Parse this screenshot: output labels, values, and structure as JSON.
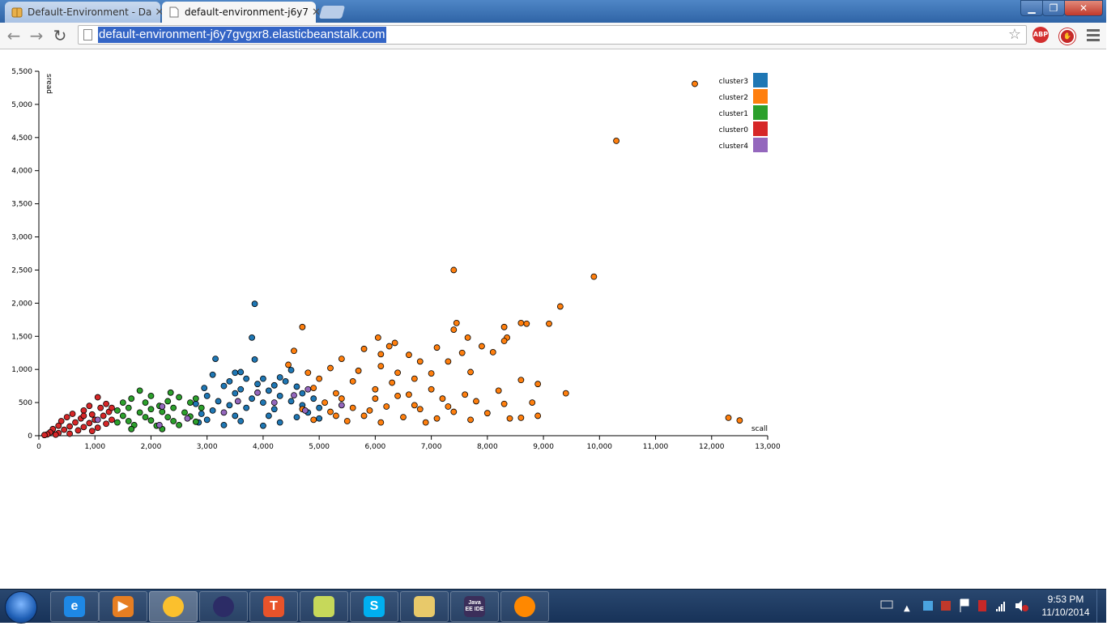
{
  "browser": {
    "tabs": [
      {
        "title": "Default-Environment - Da",
        "active": false,
        "icon": "package-icon"
      },
      {
        "title": "default-environment-j6y7",
        "active": true,
        "icon": "page-icon"
      }
    ],
    "url": "default-environment-j6y7gvgxr8.elasticbeanstalk.com",
    "extensions": [
      "ABP",
      "stop-extension-icon"
    ],
    "window_controls": [
      "minimize",
      "maximize",
      "close"
    ]
  },
  "chart_data": {
    "type": "scatter",
    "title": "",
    "xlabel": "scall",
    "ylabel": "sread",
    "xlim": [
      0,
      13000
    ],
    "ylim": [
      0,
      5500
    ],
    "x_ticks": [
      "0",
      "1,000",
      "2,000",
      "3,000",
      "4,000",
      "5,000",
      "6,000",
      "7,000",
      "8,000",
      "9,000",
      "10,000",
      "11,000",
      "12,000",
      "13,000"
    ],
    "y_ticks": [
      "0",
      "500",
      "1,000",
      "1,500",
      "2,000",
      "2,500",
      "3,000",
      "3,500",
      "4,000",
      "4,500",
      "5,000",
      "5,500"
    ],
    "legend_position": "top-right",
    "series": [
      {
        "name": "cluster3",
        "color": "#1f77b4",
        "points": [
          [
            3150,
            1160
          ],
          [
            3800,
            1480
          ],
          [
            3850,
            1150
          ],
          [
            3850,
            1990
          ],
          [
            3100,
            920
          ],
          [
            3500,
            950
          ],
          [
            3600,
            960
          ],
          [
            4500,
            990
          ],
          [
            3700,
            860
          ],
          [
            4300,
            880
          ],
          [
            4000,
            860
          ],
          [
            3400,
            820
          ],
          [
            3900,
            780
          ],
          [
            4400,
            820
          ],
          [
            2950,
            720
          ],
          [
            3300,
            750
          ],
          [
            4200,
            760
          ],
          [
            4600,
            740
          ],
          [
            3600,
            700
          ],
          [
            3000,
            600
          ],
          [
            3500,
            640
          ],
          [
            4100,
            680
          ],
          [
            4700,
            640
          ],
          [
            4900,
            560
          ],
          [
            3200,
            520
          ],
          [
            3800,
            560
          ],
          [
            4300,
            600
          ],
          [
            4700,
            460
          ],
          [
            2800,
            480
          ],
          [
            3400,
            460
          ],
          [
            4000,
            500
          ],
          [
            4500,
            520
          ],
          [
            5000,
            420
          ],
          [
            3100,
            380
          ],
          [
            3700,
            420
          ],
          [
            4200,
            400
          ],
          [
            4800,
            350
          ],
          [
            2900,
            330
          ],
          [
            3500,
            300
          ],
          [
            4100,
            300
          ],
          [
            4600,
            280
          ],
          [
            5000,
            260
          ],
          [
            3000,
            240
          ],
          [
            3600,
            220
          ],
          [
            4300,
            200
          ],
          [
            2850,
            200
          ],
          [
            3300,
            160
          ],
          [
            4000,
            150
          ]
        ]
      },
      {
        "name": "cluster2",
        "color": "#ff7f0e",
        "points": [
          [
            11700,
            5310
          ],
          [
            10300,
            4450
          ],
          [
            7400,
            2500
          ],
          [
            9900,
            2400
          ],
          [
            9300,
            1950
          ],
          [
            9100,
            1690
          ],
          [
            8700,
            1690
          ],
          [
            8600,
            1700
          ],
          [
            7450,
            1700
          ],
          [
            8300,
            1640
          ],
          [
            4700,
            1640
          ],
          [
            7400,
            1600
          ],
          [
            6050,
            1480
          ],
          [
            8350,
            1480
          ],
          [
            7650,
            1480
          ],
          [
            8300,
            1430
          ],
          [
            7100,
            1330
          ],
          [
            6250,
            1350
          ],
          [
            6350,
            1400
          ],
          [
            7550,
            1250
          ],
          [
            7900,
            1350
          ],
          [
            4550,
            1280
          ],
          [
            5800,
            1310
          ],
          [
            6100,
            1230
          ],
          [
            6600,
            1220
          ],
          [
            8100,
            1260
          ],
          [
            7300,
            1120
          ],
          [
            5400,
            1160
          ],
          [
            6800,
            1120
          ],
          [
            6100,
            1050
          ],
          [
            4450,
            1070
          ],
          [
            5200,
            1020
          ],
          [
            5700,
            980
          ],
          [
            6400,
            950
          ],
          [
            7000,
            940
          ],
          [
            7700,
            960
          ],
          [
            4800,
            950
          ],
          [
            8600,
            840
          ],
          [
            8900,
            780
          ],
          [
            9400,
            640
          ],
          [
            8200,
            680
          ],
          [
            7000,
            700
          ],
          [
            6300,
            800
          ],
          [
            5600,
            820
          ],
          [
            4900,
            720
          ],
          [
            5300,
            640
          ],
          [
            6000,
            560
          ],
          [
            6600,
            620
          ],
          [
            7200,
            560
          ],
          [
            7800,
            520
          ],
          [
            8300,
            480
          ],
          [
            8800,
            500
          ],
          [
            5100,
            500
          ],
          [
            5600,
            420
          ],
          [
            6200,
            440
          ],
          [
            6800,
            400
          ],
          [
            7400,
            360
          ],
          [
            8000,
            340
          ],
          [
            8900,
            300
          ],
          [
            5200,
            360
          ],
          [
            5800,
            300
          ],
          [
            6500,
            280
          ],
          [
            7100,
            260
          ],
          [
            7700,
            240
          ],
          [
            8400,
            260
          ],
          [
            12300,
            270
          ],
          [
            12500,
            230
          ],
          [
            8600,
            270
          ],
          [
            5500,
            220
          ],
          [
            6100,
            200
          ],
          [
            4900,
            240
          ],
          [
            5400,
            560
          ],
          [
            6000,
            700
          ],
          [
            6700,
            460
          ],
          [
            7300,
            440
          ],
          [
            4700,
            400
          ],
          [
            5900,
            380
          ],
          [
            6400,
            600
          ],
          [
            7600,
            620
          ],
          [
            5000,
            860
          ],
          [
            6700,
            860
          ],
          [
            5300,
            300
          ],
          [
            6900,
            200
          ]
        ]
      },
      {
        "name": "cluster1",
        "color": "#2ca02c",
        "points": [
          [
            1800,
            680
          ],
          [
            2350,
            650
          ],
          [
            1650,
            560
          ],
          [
            2000,
            600
          ],
          [
            2500,
            580
          ],
          [
            2800,
            560
          ],
          [
            1500,
            500
          ],
          [
            1900,
            500
          ],
          [
            2300,
            520
          ],
          [
            2700,
            500
          ],
          [
            2150,
            450
          ],
          [
            1600,
            420
          ],
          [
            2000,
            400
          ],
          [
            2400,
            420
          ],
          [
            2900,
            420
          ],
          [
            1400,
            380
          ],
          [
            1800,
            350
          ],
          [
            2200,
            360
          ],
          [
            2600,
            350
          ],
          [
            1500,
            300
          ],
          [
            1900,
            280
          ],
          [
            2300,
            280
          ],
          [
            2700,
            290
          ],
          [
            1600,
            220
          ],
          [
            2000,
            230
          ],
          [
            2400,
            220
          ],
          [
            2800,
            210
          ],
          [
            1700,
            160
          ],
          [
            2100,
            150
          ],
          [
            2500,
            160
          ],
          [
            1400,
            200
          ],
          [
            1650,
            100
          ],
          [
            2200,
            100
          ]
        ]
      },
      {
        "name": "cluster0",
        "color": "#d62728",
        "points": [
          [
            1050,
            580
          ],
          [
            1200,
            480
          ],
          [
            900,
            450
          ],
          [
            1100,
            420
          ],
          [
            800,
            380
          ],
          [
            1250,
            360
          ],
          [
            600,
            330
          ],
          [
            950,
            320
          ],
          [
            1150,
            300
          ],
          [
            500,
            280
          ],
          [
            750,
            260
          ],
          [
            1000,
            240
          ],
          [
            1300,
            240
          ],
          [
            400,
            220
          ],
          [
            650,
            200
          ],
          [
            900,
            190
          ],
          [
            1200,
            180
          ],
          [
            350,
            150
          ],
          [
            550,
            140
          ],
          [
            800,
            130
          ],
          [
            1050,
            120
          ],
          [
            250,
            100
          ],
          [
            450,
            90
          ],
          [
            700,
            80
          ],
          [
            950,
            70
          ],
          [
            200,
            50
          ],
          [
            350,
            40
          ],
          [
            550,
            30
          ],
          [
            150,
            20
          ],
          [
            100,
            10
          ],
          [
            300,
            15
          ],
          [
            800,
            300
          ],
          [
            1300,
            420
          ]
        ]
      },
      {
        "name": "cluster4",
        "color": "#9467bd",
        "points": [
          [
            1050,
            240
          ],
          [
            2200,
            440
          ],
          [
            2650,
            260
          ],
          [
            3300,
            350
          ],
          [
            4550,
            610
          ],
          [
            5400,
            460
          ],
          [
            3900,
            650
          ],
          [
            4200,
            500
          ],
          [
            4750,
            380
          ],
          [
            2150,
            160
          ],
          [
            3550,
            520
          ],
          [
            4800,
            700
          ]
        ]
      }
    ]
  },
  "taskbar": {
    "apps": [
      {
        "name": "internet-explorer",
        "label": "e",
        "color": "#1e88e5"
      },
      {
        "name": "media-player",
        "label": "▶",
        "color": "#e67e22"
      },
      {
        "name": "chrome",
        "label": "",
        "color": "#fbc02d"
      },
      {
        "name": "eclipse",
        "label": "",
        "color": "#2c2c66"
      },
      {
        "name": "t-app",
        "label": "T",
        "color": "#e8532a"
      },
      {
        "name": "sticky-notes",
        "label": "",
        "color": "#c6d85a"
      },
      {
        "name": "skype",
        "label": "S",
        "color": "#00aff0"
      },
      {
        "name": "file-explorer",
        "label": "",
        "color": "#e8c96a"
      },
      {
        "name": "java-ee-ide",
        "label": "Java EE IDE",
        "color": "#3b2e5a"
      },
      {
        "name": "vlc",
        "label": "",
        "color": "#ff8800"
      }
    ],
    "time": "9:53 PM",
    "date": "11/10/2014"
  }
}
